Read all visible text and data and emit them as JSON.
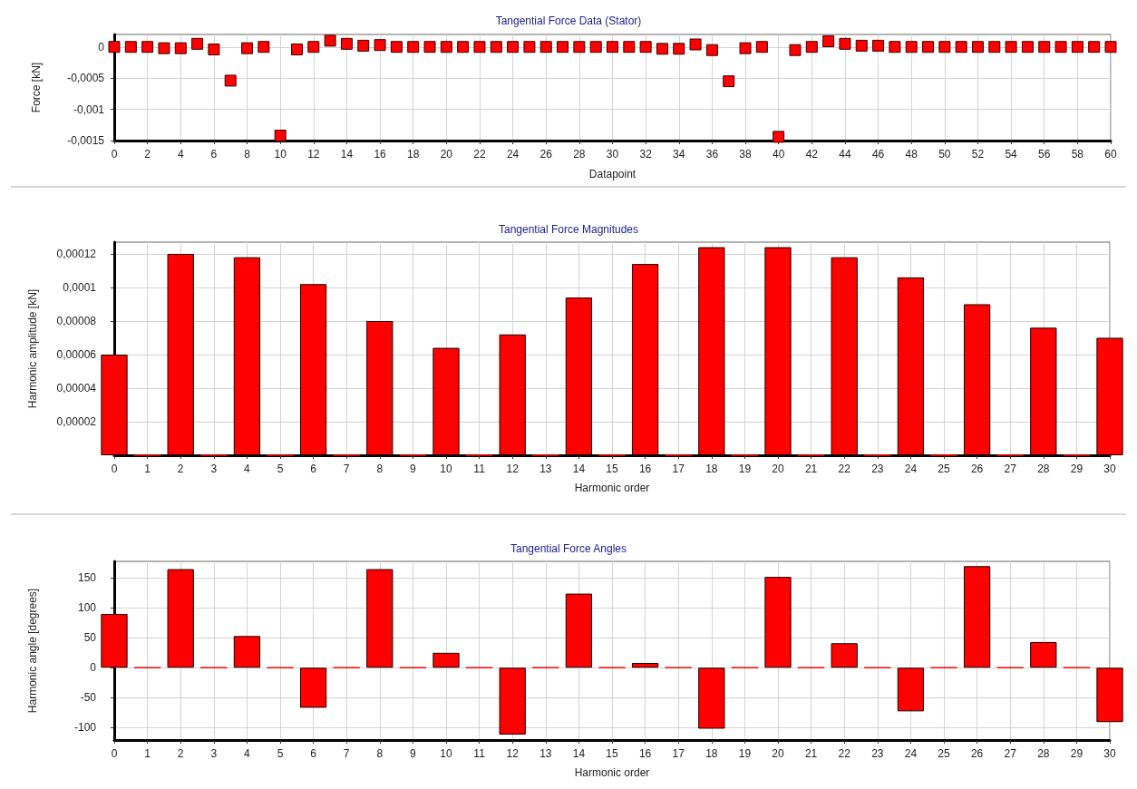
{
  "chart_data": [
    {
      "type": "scatter",
      "title": "Tangential Force Data (Stator)",
      "xlabel": "Datapoint",
      "ylabel": "Force [kN]",
      "marker": "square",
      "color": "#ff0000",
      "grid": true,
      "x": [
        0,
        1,
        2,
        3,
        4,
        5,
        6,
        7,
        8,
        9,
        10,
        11,
        12,
        13,
        14,
        15,
        16,
        17,
        18,
        19,
        20,
        21,
        22,
        23,
        24,
        25,
        26,
        27,
        28,
        29,
        30,
        31,
        32,
        33,
        34,
        35,
        36,
        37,
        38,
        39,
        40,
        41,
        42,
        43,
        44,
        45,
        46,
        47,
        48,
        49,
        50,
        51,
        52,
        53,
        54,
        55,
        56,
        57,
        58,
        59,
        60
      ],
      "values": [
        0,
        0,
        0,
        -2e-05,
        -2e-05,
        5e-05,
        -4e-05,
        -0.00054,
        -2e-05,
        0,
        -0.00142,
        -4e-05,
        0,
        0.0001,
        5e-05,
        2e-05,
        3e-05,
        0,
        0,
        0,
        0,
        0,
        0,
        0,
        0,
        0,
        0,
        0,
        0,
        0,
        0,
        0,
        0,
        -3e-05,
        -3e-05,
        4e-05,
        -5e-05,
        -0.00055,
        -2e-05,
        0,
        -0.00144,
        -5e-05,
        0,
        9e-05,
        5e-05,
        2e-05,
        2e-05,
        0,
        0,
        0,
        0,
        0,
        0,
        0,
        0,
        0,
        0,
        0,
        0,
        0,
        0
      ],
      "xlim": [
        0,
        60
      ],
      "xticks": [
        0,
        2,
        4,
        6,
        8,
        10,
        12,
        14,
        16,
        18,
        20,
        22,
        24,
        26,
        28,
        30,
        32,
        34,
        36,
        38,
        40,
        42,
        44,
        46,
        48,
        50,
        52,
        54,
        56,
        58,
        60
      ],
      "ylim": [
        -0.0015,
        0.0002
      ],
      "yticks": [
        {
          "value": -0.0015,
          "label": "-0,0015"
        },
        {
          "value": -0.001,
          "label": "-0,001"
        },
        {
          "value": -0.0005,
          "label": "-0,0005"
        },
        0
      ]
    },
    {
      "type": "bar",
      "title": "Tangential Force Magnitudes",
      "xlabel": "Harmonic order",
      "ylabel": "Harmonic amplitude [kN]",
      "color": "#ff0000",
      "grid": true,
      "x": [
        0,
        1,
        2,
        3,
        4,
        5,
        6,
        7,
        8,
        9,
        10,
        11,
        12,
        13,
        14,
        15,
        16,
        17,
        18,
        19,
        20,
        21,
        22,
        23,
        24,
        25,
        26,
        27,
        28,
        29,
        30
      ],
      "values": [
        6e-05,
        0,
        0.00012,
        0,
        0.000118,
        0,
        0.000102,
        0,
        8e-05,
        0,
        6.4e-05,
        0,
        7.2e-05,
        0,
        9.4e-05,
        0,
        0.000114,
        0,
        0.000124,
        0,
        0.000124,
        0,
        0.000118,
        0,
        0.000106,
        0,
        9e-05,
        0,
        7.6e-05,
        0,
        7e-05
      ],
      "xlim": [
        0,
        30
      ],
      "xticks": [
        0,
        1,
        2,
        3,
        4,
        5,
        6,
        7,
        8,
        9,
        10,
        11,
        12,
        13,
        14,
        15,
        16,
        17,
        18,
        19,
        20,
        21,
        22,
        23,
        24,
        25,
        26,
        27,
        28,
        29,
        30
      ],
      "ylim": [
        0,
        0.000127
      ],
      "yticks": [
        {
          "value": 2e-05,
          "label": "0,00002"
        },
        {
          "value": 4e-05,
          "label": "0,00004"
        },
        {
          "value": 6e-05,
          "label": "0,00006"
        },
        {
          "value": 8e-05,
          "label": "0,00008"
        },
        {
          "value": 0.0001,
          "label": "0,0001"
        },
        {
          "value": 0.00012,
          "label": "0,00012"
        }
      ]
    },
    {
      "type": "bar",
      "title": "Tangential Force Angles",
      "xlabel": "Harmonic order",
      "ylabel": "Harmonic angle [degrees]",
      "color": "#ff0000",
      "grid": true,
      "x": [
        0,
        1,
        2,
        3,
        4,
        5,
        6,
        7,
        8,
        9,
        10,
        11,
        12,
        13,
        14,
        15,
        16,
        17,
        18,
        19,
        20,
        21,
        22,
        23,
        24,
        25,
        26,
        27,
        28,
        29,
        30
      ],
      "values": [
        90,
        0,
        165,
        0,
        53,
        0,
        -67,
        0,
        165,
        0,
        25,
        0,
        -112,
        0,
        124,
        0,
        8,
        0,
        -102,
        0,
        152,
        0,
        41,
        0,
        -73,
        0,
        170,
        0,
        43,
        0,
        -91
      ],
      "xlim": [
        0,
        30
      ],
      "xticks": [
        0,
        1,
        2,
        3,
        4,
        5,
        6,
        7,
        8,
        9,
        10,
        11,
        12,
        13,
        14,
        15,
        16,
        17,
        18,
        19,
        20,
        21,
        22,
        23,
        24,
        25,
        26,
        27,
        28,
        29,
        30
      ],
      "ylim": [
        -121,
        178
      ],
      "yticks": [
        -100,
        -50,
        0,
        50,
        100,
        150
      ]
    }
  ]
}
